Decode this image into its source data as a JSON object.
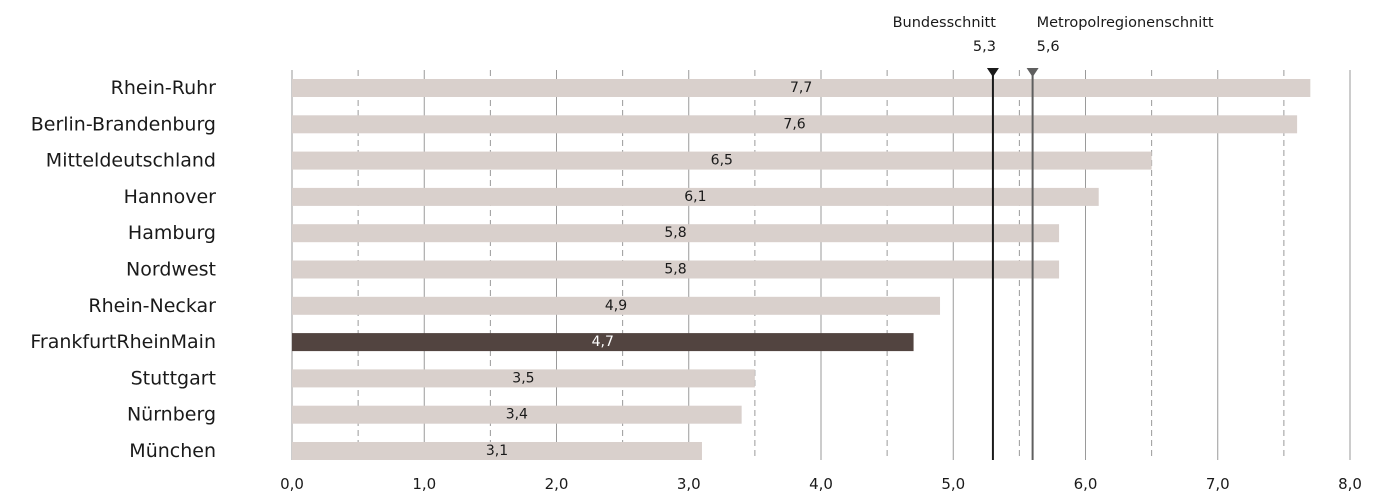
{
  "chart_data": {
    "type": "bar",
    "orientation": "horizontal",
    "categories": [
      "Rhein-Ruhr",
      "Berlin-Brandenburg",
      "Mitteldeutschland",
      "Hannover",
      "Hamburg",
      "Nordwest",
      "Rhein-Neckar",
      "FrankfurtRheinMain",
      "Stuttgart",
      "Nürnberg",
      "München"
    ],
    "values": [
      7.7,
      7.6,
      6.5,
      6.1,
      5.8,
      5.8,
      4.9,
      4.7,
      3.5,
      3.4,
      3.1
    ],
    "data_labels": [
      "7,7",
      "7,6",
      "6,5",
      "6,1",
      "5,8",
      "5,8",
      "4,9",
      "4,7",
      "3,5",
      "3,4",
      "3,1"
    ],
    "highlight": "FrankfurtRheinMain",
    "xlim": [
      0,
      8
    ],
    "x_ticks": [
      0,
      1,
      2,
      3,
      4,
      5,
      6,
      7,
      8
    ],
    "x_tick_labels": [
      "0,0",
      "1,0",
      "2,0",
      "3,0",
      "4,0",
      "5,0",
      "6,0",
      "7,0",
      "8,0"
    ],
    "grid": "vertical, solid at whole numbers, dashed at halves",
    "reference_lines": [
      {
        "name": "Bundesschnitt",
        "value": 5.3,
        "label": "5,3"
      },
      {
        "name": "Metropolregionenschnitt",
        "value": 5.6,
        "label": "5,6"
      }
    ],
    "colors": {
      "bar": "#d9d0cc",
      "highlight_bar": "#524440",
      "bundes_line": "#1a1a1a",
      "metro_line": "#5f5f5f",
      "grid": "#9a9a9a"
    }
  }
}
